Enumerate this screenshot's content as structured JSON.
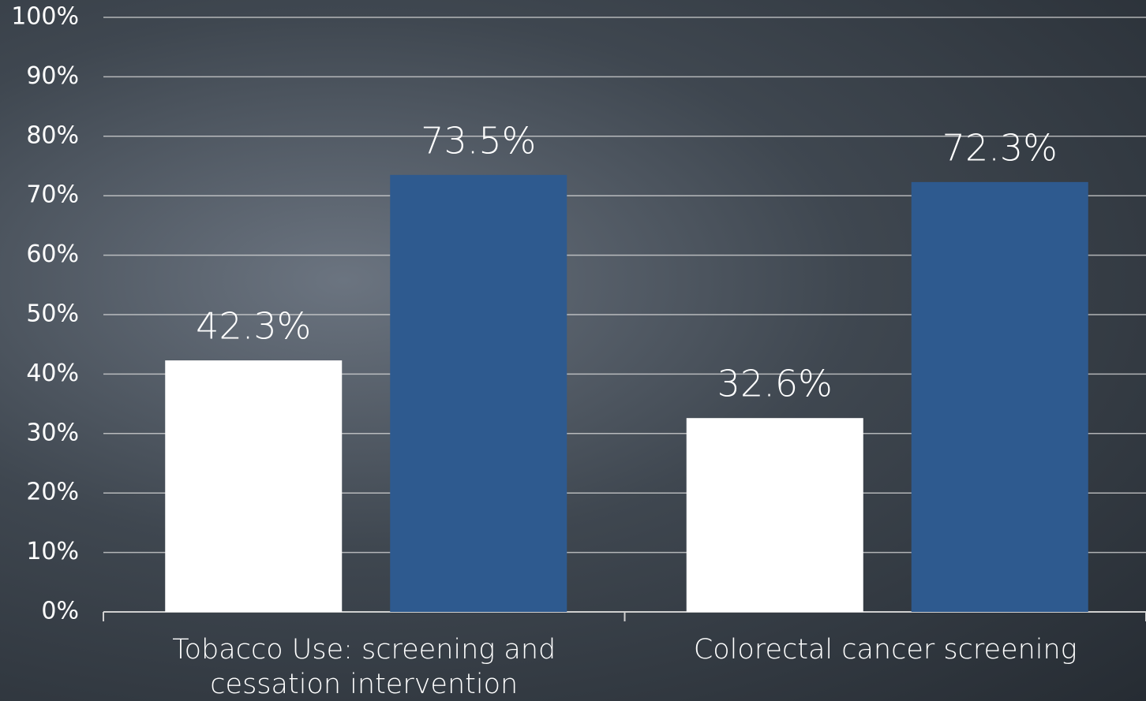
{
  "chart_data": {
    "type": "bar",
    "categories": [
      "Tobacco Use: screening and cessation intervention",
      "Colorectal cancer screening"
    ],
    "series": [
      {
        "color": "#ffffff",
        "values": [
          42.3,
          32.6
        ],
        "value_labels": [
          "42.3%",
          "32.6%"
        ]
      },
      {
        "color": "#2e5a8f",
        "values": [
          73.5,
          72.3
        ],
        "value_labels": [
          "73.5%",
          "72.3%"
        ]
      }
    ],
    "ylim": [
      0,
      100
    ],
    "yticks": [
      {
        "value": 0,
        "label": "0%"
      },
      {
        "value": 10,
        "label": "10%"
      },
      {
        "value": 20,
        "label": "20%"
      },
      {
        "value": 30,
        "label": "30%"
      },
      {
        "value": 40,
        "label": "40%"
      },
      {
        "value": 50,
        "label": "50%"
      },
      {
        "value": 60,
        "label": "60%"
      },
      {
        "value": 70,
        "label": "70%"
      },
      {
        "value": 80,
        "label": "80%"
      },
      {
        "value": 90,
        "label": "90%"
      },
      {
        "value": 100,
        "label": "100%"
      }
    ],
    "grid": true
  }
}
